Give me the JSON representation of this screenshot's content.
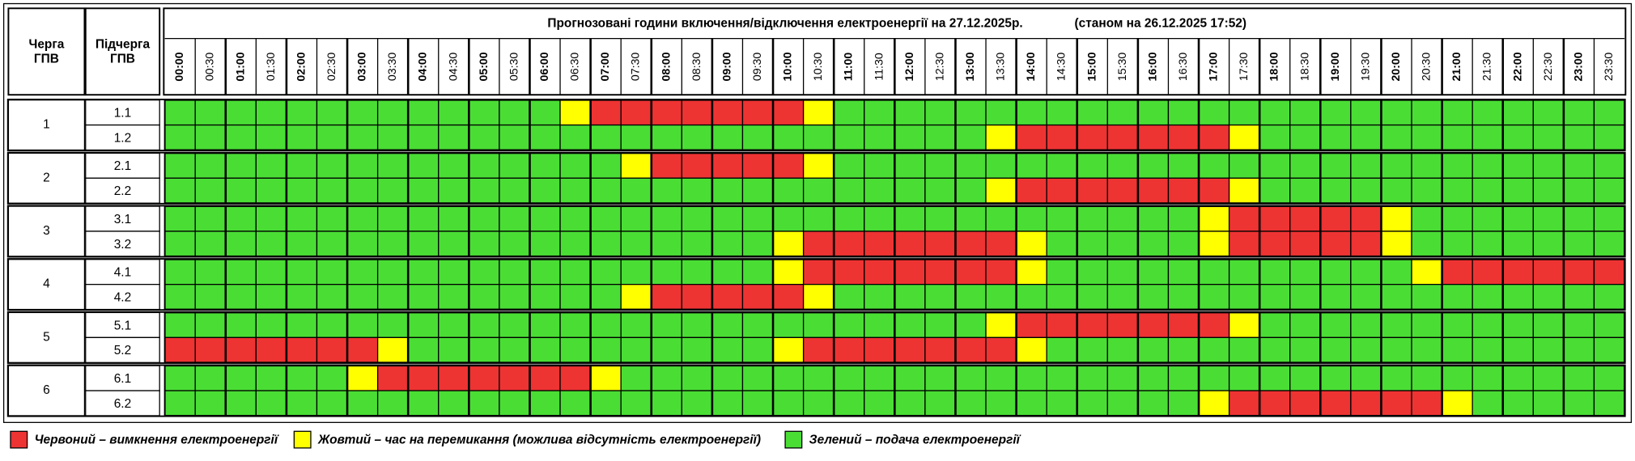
{
  "header": {
    "queue": [
      "Черга",
      "ГПВ"
    ],
    "subqueue": [
      "Підчерга",
      "ГПВ"
    ],
    "title": "Прогнозовані години включення/відключення електроенергії на 27.12.2025р.",
    "status": "(станом на 26.12.2025 17:52)"
  },
  "times": [
    "00:00",
    "00:30",
    "01:00",
    "01:30",
    "02:00",
    "02:30",
    "03:00",
    "03:30",
    "04:00",
    "04:30",
    "05:00",
    "05:30",
    "06:00",
    "06:30",
    "07:00",
    "07:30",
    "08:00",
    "08:30",
    "09:00",
    "09:30",
    "10:00",
    "10:30",
    "11:00",
    "11:30",
    "12:00",
    "12:30",
    "13:00",
    "13:30",
    "14:00",
    "14:30",
    "15:00",
    "15:30",
    "16:00",
    "16:30",
    "17:00",
    "17:30",
    "18:00",
    "18:30",
    "19:00",
    "19:30",
    "20:00",
    "20:30",
    "21:00",
    "21:30",
    "22:00",
    "22:30",
    "23:00",
    "23:30"
  ],
  "legend": [
    {
      "color": "#ee3333",
      "label": "Червоний – вимкнення електроенергії"
    },
    {
      "color": "#ffff00",
      "label": "Жовтий – час на перемикання (можлива відсутність електроенергії)"
    },
    {
      "color": "#4ade35",
      "label": "Зелений – подача електроенергії"
    }
  ],
  "groups": [
    {
      "label": "1",
      "rows": [
        {
          "label": "1.1",
          "cells": [
            2,
            2,
            2,
            2,
            2,
            2,
            2,
            2,
            2,
            2,
            2,
            2,
            2,
            1,
            0,
            0,
            0,
            0,
            0,
            0,
            0,
            1,
            2,
            2,
            2,
            2,
            2,
            2,
            2,
            2,
            2,
            2,
            2,
            2,
            2,
            2,
            2,
            2,
            2,
            2,
            2,
            2,
            2,
            2,
            2,
            2,
            2,
            2
          ]
        },
        {
          "label": "1.2",
          "cells": [
            2,
            2,
            2,
            2,
            2,
            2,
            2,
            2,
            2,
            2,
            2,
            2,
            2,
            2,
            2,
            2,
            2,
            2,
            2,
            2,
            2,
            2,
            2,
            2,
            2,
            2,
            2,
            1,
            0,
            0,
            0,
            0,
            0,
            0,
            0,
            1,
            2,
            2,
            2,
            2,
            2,
            2,
            2,
            2,
            2,
            2,
            2,
            2
          ]
        }
      ]
    },
    {
      "label": "2",
      "rows": [
        {
          "label": "2.1",
          "cells": [
            2,
            2,
            2,
            2,
            2,
            2,
            2,
            2,
            2,
            2,
            2,
            2,
            2,
            2,
            2,
            1,
            0,
            0,
            0,
            0,
            0,
            1,
            2,
            2,
            2,
            2,
            2,
            2,
            2,
            2,
            2,
            2,
            2,
            2,
            2,
            2,
            2,
            2,
            2,
            2,
            2,
            2,
            2,
            2,
            2,
            2,
            2,
            2
          ]
        },
        {
          "label": "2.2",
          "cells": [
            2,
            2,
            2,
            2,
            2,
            2,
            2,
            2,
            2,
            2,
            2,
            2,
            2,
            2,
            2,
            2,
            2,
            2,
            2,
            2,
            2,
            2,
            2,
            2,
            2,
            2,
            2,
            1,
            0,
            0,
            0,
            0,
            0,
            0,
            0,
            1,
            2,
            2,
            2,
            2,
            2,
            2,
            2,
            2,
            2,
            2,
            2,
            2
          ]
        }
      ]
    },
    {
      "label": "3",
      "rows": [
        {
          "label": "3.1",
          "cells": [
            2,
            2,
            2,
            2,
            2,
            2,
            2,
            2,
            2,
            2,
            2,
            2,
            2,
            2,
            2,
            2,
            2,
            2,
            2,
            2,
            2,
            2,
            2,
            2,
            2,
            2,
            2,
            2,
            2,
            2,
            2,
            2,
            2,
            2,
            1,
            0,
            0,
            0,
            0,
            0,
            1,
            2,
            2,
            2,
            2,
            2,
            2,
            2
          ]
        },
        {
          "label": "3.2",
          "cells": [
            2,
            2,
            2,
            2,
            2,
            2,
            2,
            2,
            2,
            2,
            2,
            2,
            2,
            2,
            2,
            2,
            2,
            2,
            2,
            2,
            1,
            0,
            0,
            0,
            0,
            0,
            0,
            0,
            1,
            2,
            2,
            2,
            2,
            2,
            1,
            0,
            0,
            0,
            0,
            0,
            1,
            2,
            2,
            2,
            2,
            2,
            2,
            2
          ]
        }
      ]
    },
    {
      "label": "4",
      "rows": [
        {
          "label": "4.1",
          "cells": [
            2,
            2,
            2,
            2,
            2,
            2,
            2,
            2,
            2,
            2,
            2,
            2,
            2,
            2,
            2,
            2,
            2,
            2,
            2,
            2,
            1,
            0,
            0,
            0,
            0,
            0,
            0,
            0,
            1,
            2,
            2,
            2,
            2,
            2,
            2,
            2,
            2,
            2,
            2,
            2,
            2,
            1,
            0,
            0,
            0,
            0,
            0,
            0
          ]
        },
        {
          "label": "4.2",
          "cells": [
            2,
            2,
            2,
            2,
            2,
            2,
            2,
            2,
            2,
            2,
            2,
            2,
            2,
            2,
            2,
            1,
            0,
            0,
            0,
            0,
            0,
            1,
            2,
            2,
            2,
            2,
            2,
            2,
            2,
            2,
            2,
            2,
            2,
            2,
            2,
            2,
            2,
            2,
            2,
            2,
            2,
            2,
            2,
            2,
            2,
            2,
            2,
            2
          ]
        }
      ]
    },
    {
      "label": "5",
      "rows": [
        {
          "label": "5.1",
          "cells": [
            2,
            2,
            2,
            2,
            2,
            2,
            2,
            2,
            2,
            2,
            2,
            2,
            2,
            2,
            2,
            2,
            2,
            2,
            2,
            2,
            2,
            2,
            2,
            2,
            2,
            2,
            2,
            1,
            0,
            0,
            0,
            0,
            0,
            0,
            0,
            1,
            2,
            2,
            2,
            2,
            2,
            2,
            2,
            2,
            2,
            2,
            2,
            2
          ]
        },
        {
          "label": "5.2",
          "cells": [
            0,
            0,
            0,
            0,
            0,
            0,
            0,
            1,
            2,
            2,
            2,
            2,
            2,
            2,
            2,
            2,
            2,
            2,
            2,
            2,
            1,
            0,
            0,
            0,
            0,
            0,
            0,
            0,
            1,
            2,
            2,
            2,
            2,
            2,
            2,
            2,
            2,
            2,
            2,
            2,
            2,
            2,
            2,
            2,
            2,
            2,
            2,
            2
          ]
        }
      ]
    },
    {
      "label": "6",
      "rows": [
        {
          "label": "6.1",
          "cells": [
            2,
            2,
            2,
            2,
            2,
            2,
            1,
            0,
            0,
            0,
            0,
            0,
            0,
            0,
            1,
            2,
            2,
            2,
            2,
            2,
            2,
            2,
            2,
            2,
            2,
            2,
            2,
            2,
            2,
            2,
            2,
            2,
            2,
            2,
            2,
            2,
            2,
            2,
            2,
            2,
            2,
            2,
            2,
            2,
            2,
            2,
            2,
            2
          ]
        },
        {
          "label": "6.2",
          "cells": [
            2,
            2,
            2,
            2,
            2,
            2,
            2,
            2,
            2,
            2,
            2,
            2,
            2,
            2,
            2,
            2,
            2,
            2,
            2,
            2,
            2,
            2,
            2,
            2,
            2,
            2,
            2,
            2,
            2,
            2,
            2,
            2,
            2,
            2,
            1,
            0,
            0,
            0,
            0,
            0,
            0,
            0,
            1,
            2,
            2,
            2,
            2,
            2
          ]
        }
      ]
    }
  ]
}
